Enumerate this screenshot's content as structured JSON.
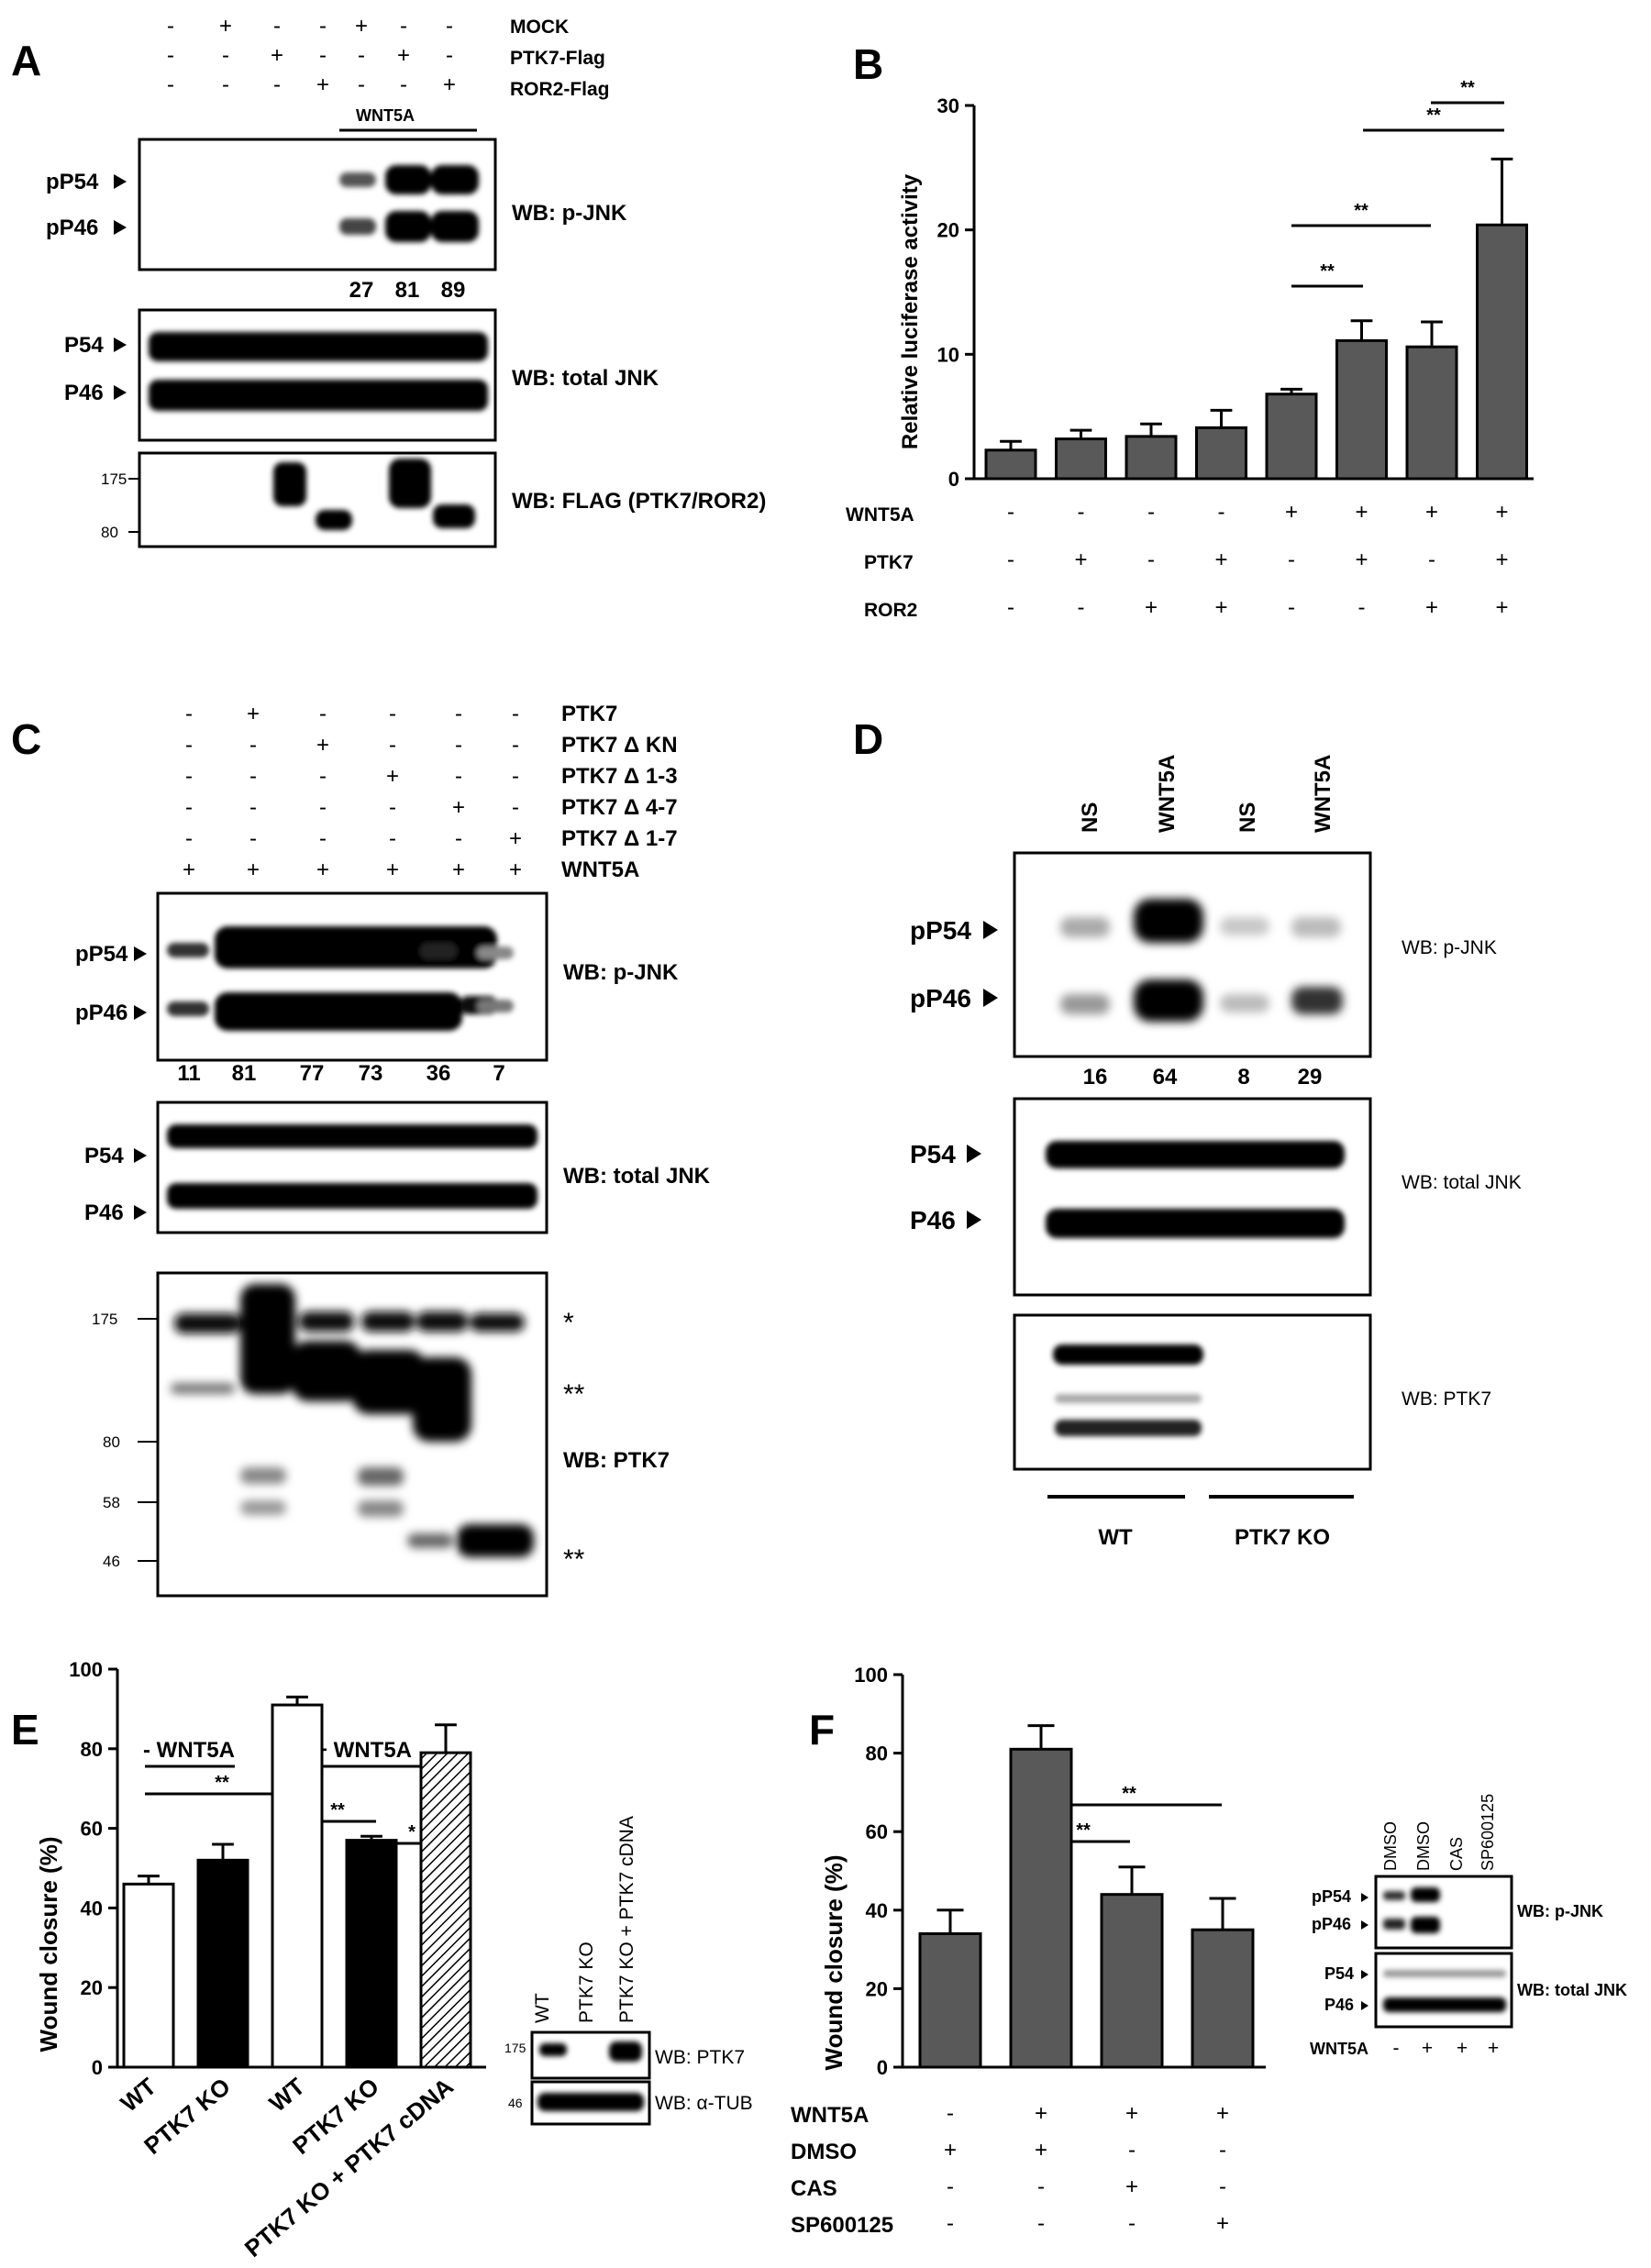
{
  "panels": {
    "A": {
      "letter": "A",
      "cond_labels": [
        "MOCK",
        "PTK7-Flag",
        "ROR2-Flag"
      ],
      "cond_signs": [
        [
          "-",
          "+",
          "-",
          "-",
          "+",
          "-",
          "-"
        ],
        [
          "-",
          "-",
          "+",
          "-",
          "-",
          "+",
          "-"
        ],
        [
          "-",
          "-",
          "-",
          "+",
          "-",
          "-",
          "+"
        ]
      ],
      "wnt_label": "WNT5A",
      "blot1_left": [
        "pP54",
        "pP46"
      ],
      "blot1_wb": "WB: p-JNK",
      "quant": [
        "27",
        "81",
        "89"
      ],
      "blot2_left": [
        "P54",
        "P46"
      ],
      "blot2_wb": "WB: total JNK",
      "blot3_mw": [
        "175",
        "80"
      ],
      "blot3_wb": "WB: FLAG (PTK7/ROR2)"
    },
    "B": {
      "letter": "B",
      "row_labels": [
        "WNT5A",
        "PTK7",
        "ROR2"
      ],
      "row_signs": [
        [
          "-",
          "-",
          "-",
          "-",
          "+",
          "+",
          "+",
          "+"
        ],
        [
          "-",
          "+",
          "-",
          "+",
          "-",
          "+",
          "-",
          "+"
        ],
        [
          "-",
          "-",
          "+",
          "+",
          "-",
          "-",
          "+",
          "+"
        ]
      ],
      "sig": [
        "**",
        "**",
        "**",
        "**"
      ]
    },
    "C": {
      "letter": "C",
      "cond_labels": [
        "PTK7",
        "PTK7 Δ KN",
        "PTK7 Δ 1-3",
        "PTK7 Δ 4-7",
        "PTK7 Δ 1-7",
        "WNT5A"
      ],
      "cond_signs": [
        [
          "-",
          "+",
          "-",
          "-",
          "-",
          "-"
        ],
        [
          "-",
          "-",
          "+",
          "-",
          "-",
          "-"
        ],
        [
          "-",
          "-",
          "-",
          "+",
          "-",
          "-"
        ],
        [
          "-",
          "-",
          "-",
          "-",
          "+",
          "-"
        ],
        [
          "-",
          "-",
          "-",
          "-",
          "-",
          "+"
        ],
        [
          "+",
          "+",
          "+",
          "+",
          "+",
          "+"
        ]
      ],
      "blot1_left": [
        "pP54",
        "pP46"
      ],
      "blot1_wb": "WB: p-JNK",
      "quant": [
        "11",
        "81",
        "77",
        "73",
        "36",
        "7"
      ],
      "blot2_left": [
        "P54",
        "P46"
      ],
      "blot2_wb": "WB: total JNK",
      "blot3_mw": [
        "175",
        "80",
        "58",
        "46"
      ],
      "blot3_wb": "WB: PTK7",
      "blot3_marks": [
        "*",
        "**",
        "**"
      ]
    },
    "D": {
      "letter": "D",
      "lane_labels": [
        "NS",
        "WNT5A",
        "NS",
        "WNT5A"
      ],
      "blot1_left": [
        "pP54",
        "pP46"
      ],
      "blot1_wb": "WB: p-JNK",
      "quant": [
        "16",
        "64",
        "8",
        "29"
      ],
      "blot2_left": [
        "P54",
        "P46"
      ],
      "blot2_wb": "WB: total JNK",
      "blot3_wb": "WB: PTK7",
      "groups": [
        "WT",
        "PTK7 KO"
      ]
    },
    "E": {
      "letter": "E",
      "group_labels": [
        "- WNT5A",
        "+ WNT5A"
      ],
      "sig": [
        "**",
        "**",
        "*"
      ],
      "blot_lane_labels": [
        "WT",
        "PTK7 KO",
        "PTK7 KO + PTK7 cDNA"
      ],
      "blot_mw": [
        "175",
        "46"
      ],
      "blot_wb": [
        "WB: PTK7",
        "WB: α-TUB"
      ]
    },
    "F": {
      "letter": "F",
      "row_labels": [
        "WNT5A",
        "DMSO",
        "CAS",
        "SP600125"
      ],
      "row_signs": [
        [
          "-",
          "+",
          "+",
          "+"
        ],
        [
          "+",
          "+",
          "-",
          "-"
        ],
        [
          "-",
          "-",
          "+",
          "-"
        ],
        [
          "-",
          "-",
          "-",
          "+"
        ]
      ],
      "sig": [
        "**",
        "**"
      ],
      "blot_lane_labels": [
        "DMSO",
        "DMSO",
        "CAS",
        "SP600125"
      ],
      "blot1_left": [
        "pP54",
        "pP46"
      ],
      "blot1_wb": "WB: p-JNK",
      "blot2_left": [
        "P54",
        "P46"
      ],
      "blot2_wb": "WB: total JNK",
      "blot_wnt_label": "WNT5A",
      "blot_wnt_signs": [
        "-",
        "+",
        "+",
        "+"
      ]
    }
  },
  "chart_data": [
    {
      "panel": "B",
      "type": "bar",
      "ylabel": "Relative luciferase activity",
      "ylim": [
        0,
        30
      ],
      "yticks": [
        0,
        10,
        20,
        30
      ],
      "values": [
        2.3,
        3.2,
        3.4,
        4.1,
        6.8,
        11.1,
        10.6,
        20.4
      ],
      "errors": [
        0.7,
        0.7,
        1.0,
        1.4,
        0.4,
        1.6,
        2.0,
        5.3
      ],
      "bar_color": "#595959"
    },
    {
      "panel": "E",
      "type": "bar",
      "ylabel": "Wound closure (%)",
      "ylim": [
        0,
        100
      ],
      "yticks": [
        0,
        20,
        40,
        60,
        80,
        100
      ],
      "categories": [
        "WT",
        "PTK7 KO",
        "WT",
        "PTK7 KO",
        "PTK7 KO + PTK7 cDNA"
      ],
      "values": [
        46,
        52,
        91,
        57,
        79
      ],
      "errors": [
        2,
        4,
        2,
        1,
        7
      ],
      "fills": [
        "white",
        "black",
        "white",
        "black",
        "hatched"
      ]
    },
    {
      "panel": "F",
      "type": "bar",
      "ylabel": "Wound closure (%)",
      "ylim": [
        0,
        100
      ],
      "yticks": [
        0,
        20,
        40,
        60,
        80,
        100
      ],
      "values": [
        34,
        81,
        44,
        35
      ],
      "errors": [
        6,
        6,
        7,
        8
      ],
      "bar_color": "#595959"
    }
  ]
}
